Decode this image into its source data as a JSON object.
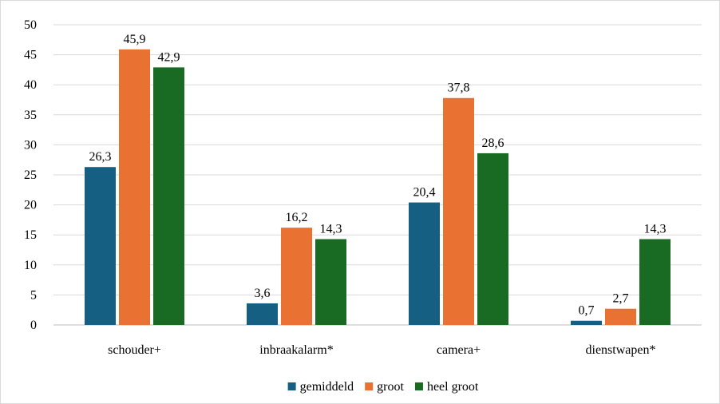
{
  "chart_data": {
    "type": "bar",
    "categories": [
      "schouder+",
      "inbraakalarm*",
      "camera+",
      "dienstwapen*"
    ],
    "series": [
      {
        "name": "gemiddeld",
        "color": "#156082",
        "values": [
          26.3,
          3.6,
          20.4,
          0.7
        ],
        "labels": [
          "26,3",
          "3,6",
          "20,4",
          "0,7"
        ]
      },
      {
        "name": "groot",
        "color": "#e97132",
        "values": [
          45.9,
          16.2,
          37.8,
          2.7
        ],
        "labels": [
          "45,9",
          "16,2",
          "37,8",
          "2,7"
        ]
      },
      {
        "name": "heel groot",
        "color": "#196b24",
        "values": [
          42.9,
          14.3,
          28.6,
          14.3
        ],
        "labels": [
          "42,9",
          "14,3",
          "28,6",
          "14,3"
        ]
      }
    ],
    "ylim": [
      0,
      50
    ],
    "yticks": [
      0,
      5,
      10,
      15,
      20,
      25,
      30,
      35,
      40,
      45,
      50
    ],
    "grid": true,
    "legend_position": "bottom"
  }
}
